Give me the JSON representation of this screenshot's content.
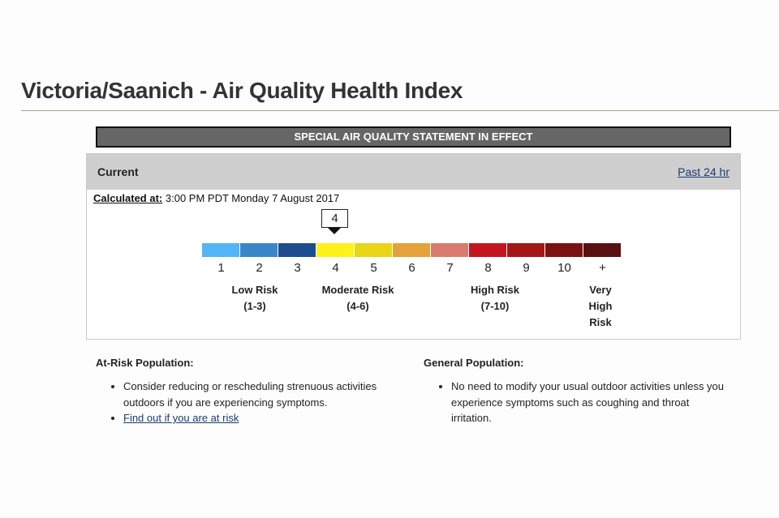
{
  "page": {
    "title": "Victoria/Saanich - Air Quality Health Index"
  },
  "banner": {
    "text": "SPECIAL AIR QUALITY STATEMENT IN EFFECT"
  },
  "panel": {
    "label": "Current",
    "past_link": "Past 24 hr",
    "calculated_label": "Calculated at:",
    "calculated_value": "3:00 PM PDT Monday 7 August 2017",
    "current_value": "4"
  },
  "scale": {
    "ticks": [
      "1",
      "2",
      "3",
      "4",
      "5",
      "6",
      "7",
      "8",
      "9",
      "10",
      "+"
    ],
    "colors": [
      "#52b5f5",
      "#3b86c9",
      "#1e4d8f",
      "#fff21a",
      "#e8d617",
      "#e4a23c",
      "#d97b6f",
      "#c4161f",
      "#a31717",
      "#7b1212",
      "#591010"
    ],
    "categories": [
      {
        "line1": "Low Risk",
        "line2": "(1-3)"
      },
      {
        "line1": "Moderate Risk",
        "line2": "(4-6)"
      },
      {
        "line1": "High Risk",
        "line2": "(7-10)"
      },
      {
        "line1": "Very",
        "line2": "High",
        "line3": "Risk"
      }
    ]
  },
  "at_risk": {
    "heading": "At-Risk Population:",
    "items": [
      "Consider reducing or rescheduling strenuous activities outdoors if you are experiencing symptoms."
    ],
    "link": "Find out if you are at risk"
  },
  "general": {
    "heading": "General Population:",
    "items": [
      "No need to modify your usual outdoor activities unless you experience symptoms such as coughing and throat irritation."
    ]
  }
}
